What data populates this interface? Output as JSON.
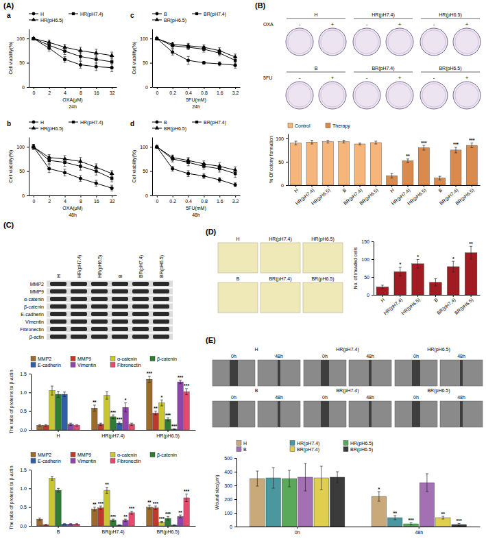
{
  "panels": [
    "(A)",
    "(B)",
    "(C)",
    "(D)",
    "(E)"
  ],
  "colony_images": {
    "rows": [
      {
        "treatment": "OXA",
        "groups": [
          "H",
          "HR(pH7.4)",
          "HR(pH6.5)"
        ]
      },
      {
        "treatment": "5FU",
        "groups": [
          "B",
          "BR(pH7.4)",
          "BR(pH6.5)"
        ]
      }
    ],
    "signs": [
      "-",
      "+"
    ]
  },
  "blot": {
    "lanes": [
      "H",
      "HR(pH7.4)",
      "HR(pH6.5)",
      "B",
      "BR(pH7.4)",
      "BR(pH6.5)"
    ],
    "proteins": [
      "MMP2",
      "MMP9",
      "α-catenin",
      "β-catenin",
      "E-cadherin",
      "Vimentin",
      "Fibronectin",
      "β-actin"
    ]
  },
  "invasion_images": {
    "labels": [
      "H",
      "HR(pH7.4)",
      "HR(pH6.5)",
      "B",
      "BR(pH7.4)",
      "BR(pH6.5)"
    ]
  },
  "wound_images": {
    "labels": [
      "H",
      "HR(pH7.4)",
      "HR(pH6.5)",
      "B",
      "BR(pH7.4)",
      "BR(pH6.5)"
    ],
    "times": [
      "0h",
      "48h"
    ]
  },
  "chart_data": [
    {
      "type": "line",
      "title": "a",
      "subtitle": "24h",
      "x_label": "OXA(μM)",
      "y_label": "Cell viability(%)",
      "categories": [
        "0",
        "2",
        "4",
        "8",
        "16",
        "32"
      ],
      "ylim": [
        0,
        120
      ],
      "yticks": [
        0,
        50,
        100
      ],
      "legend": "top",
      "series": [
        {
          "name": "H",
          "color": "#000000",
          "marker": "circle",
          "values": [
            100,
            80,
            57,
            46,
            42,
            40
          ],
          "errors": [
            2,
            6,
            6,
            7,
            8,
            8
          ]
        },
        {
          "name": "HR(pH7.4)",
          "color": "#000000",
          "marker": "square",
          "values": [
            100,
            86,
            74,
            63,
            57,
            52
          ],
          "errors": [
            2,
            5,
            7,
            8,
            9,
            9
          ]
        },
        {
          "name": "HR(pH6.5)",
          "color": "#000000",
          "marker": "triangle",
          "values": [
            100,
            92,
            82,
            75,
            70,
            65
          ],
          "errors": [
            2,
            5,
            6,
            7,
            8,
            7
          ]
        }
      ]
    },
    {
      "type": "line",
      "title": "b",
      "subtitle": "48h",
      "x_label": "OXA(μM)",
      "y_label": "Cell viability(%)",
      "categories": [
        "0",
        "2",
        "4",
        "8",
        "16",
        "32"
      ],
      "ylim": [
        0,
        120
      ],
      "yticks": [
        0,
        50,
        100
      ],
      "legend": "top",
      "series": [
        {
          "name": "H",
          "color": "#000000",
          "marker": "circle",
          "values": [
            100,
            55,
            47,
            35,
            25,
            15
          ],
          "errors": [
            5,
            8,
            7,
            6,
            6,
            6
          ]
        },
        {
          "name": "HR(pH7.4)",
          "color": "#000000",
          "marker": "square",
          "values": [
            100,
            72,
            68,
            60,
            50,
            35
          ],
          "errors": [
            5,
            7,
            8,
            8,
            8,
            7
          ]
        },
        {
          "name": "HR(pH6.5)",
          "color": "#000000",
          "marker": "triangle",
          "values": [
            100,
            78,
            75,
            70,
            58,
            45
          ],
          "errors": [
            5,
            6,
            7,
            8,
            7,
            6
          ]
        }
      ]
    },
    {
      "type": "line",
      "title": "c",
      "subtitle": "24h",
      "x_label": "5FU(mM)",
      "y_label": "Cell viability(%)",
      "categories": [
        "0",
        "0.2",
        "0.4",
        "0.8",
        "1.6",
        "3.2"
      ],
      "ylim": [
        0,
        120
      ],
      "yticks": [
        0,
        50,
        100
      ],
      "legend": "top",
      "series": [
        {
          "name": "B",
          "color": "#000000",
          "marker": "circle",
          "values": [
            100,
            72,
            55,
            50,
            48,
            45
          ],
          "errors": [
            2,
            6,
            8,
            3,
            4,
            6
          ]
        },
        {
          "name": "BR(pH7.4)",
          "color": "#000000",
          "marker": "square",
          "values": [
            100,
            85,
            82,
            78,
            70,
            55
          ],
          "errors": [
            2,
            5,
            5,
            6,
            6,
            7
          ]
        },
        {
          "name": "BR(pH6.5)",
          "color": "#000000",
          "marker": "triangle",
          "values": [
            100,
            88,
            85,
            82,
            75,
            62
          ],
          "errors": [
            2,
            4,
            5,
            5,
            6,
            6
          ]
        }
      ]
    },
    {
      "type": "line",
      "title": "d",
      "subtitle": "48h",
      "x_label": "5FU(mM)",
      "y_label": "Cell viability(%)",
      "categories": [
        "0",
        "0.2",
        "0.4",
        "0.8",
        "1.6",
        "3.2"
      ],
      "ylim": [
        0,
        120
      ],
      "yticks": [
        0,
        50,
        100
      ],
      "legend": "top",
      "series": [
        {
          "name": "B",
          "color": "#000000",
          "marker": "circle",
          "values": [
            100,
            55,
            45,
            40,
            32,
            22
          ],
          "errors": [
            2,
            5,
            6,
            5,
            5,
            4
          ]
        },
        {
          "name": "BR(pH7.4)",
          "color": "#000000",
          "marker": "square",
          "values": [
            100,
            75,
            68,
            60,
            55,
            45
          ],
          "errors": [
            2,
            6,
            7,
            6,
            7,
            8
          ]
        },
        {
          "name": "BR(pH6.5)",
          "color": "#000000",
          "marker": "triangle",
          "values": [
            100,
            78,
            72,
            65,
            60,
            52
          ],
          "errors": [
            2,
            5,
            6,
            6,
            7,
            7
          ]
        }
      ]
    },
    {
      "type": "bar",
      "y_label": "% Of colony formation",
      "categories": [
        "H",
        "HR(pH7.4)",
        "HR(pH6.5)",
        "B",
        "BR(pH7.4)",
        "BR(pH6.5)",
        "H",
        "HR(pH7.4)",
        "HR(pH6.5)",
        "B",
        "BR(pH7.4)",
        "BR(pH6.5)"
      ],
      "ylim": [
        0,
        110
      ],
      "yticks": [
        0,
        50,
        100
      ],
      "legend": "top",
      "series": [
        {
          "name": "Control",
          "color": "#f6b57a",
          "values": [
            90,
            92,
            93,
            93,
            88,
            91,
            null,
            null,
            null,
            null,
            null,
            null
          ],
          "errors": [
            4,
            4,
            3,
            3,
            2,
            3,
            null,
            null,
            null,
            null,
            null,
            null
          ]
        },
        {
          "name": "Therapy",
          "color": "#d98a4c",
          "values": [
            null,
            null,
            null,
            null,
            null,
            null,
            20,
            52,
            80,
            15,
            75,
            85
          ],
          "errors": [
            null,
            null,
            null,
            null,
            null,
            null,
            5,
            4,
            5,
            4,
            6,
            5
          ],
          "annotations": [
            null,
            null,
            null,
            null,
            null,
            null,
            null,
            "**",
            "***",
            null,
            "***",
            "***"
          ]
        }
      ]
    },
    {
      "type": "bar",
      "y_label": "The ratio of proteins to β-actin",
      "categories": [
        "H",
        "HR(pH7.4)",
        "HR(pH6.5)"
      ],
      "ylim": [
        0,
        1.5
      ],
      "yticks": [
        {
          "value": 0,
          "label": "0.0"
        },
        0.5,
        {
          "value": 1,
          "label": "1.0"
        },
        1.5
      ],
      "legend": "top",
      "series": [
        {
          "name": "MMP2",
          "color": "#9c6a2e",
          "values": [
            0.12,
            0.58,
            1.35
          ],
          "errors": [
            0.02,
            0.08,
            0.08
          ],
          "annotations": [
            null,
            "**",
            "***"
          ]
        },
        {
          "name": "MMP9",
          "color": "#c0392b",
          "values": [
            0.12,
            0.15,
            0.45
          ],
          "errors": [
            0.02,
            0.03,
            0.05
          ],
          "annotations": [
            null,
            null,
            "**"
          ]
        },
        {
          "name": "α-catenin",
          "color": "#c9c634",
          "values": [
            1.05,
            0.92,
            0.72
          ],
          "errors": [
            0.12,
            0.1,
            0.08
          ],
          "annotations": [
            null,
            null,
            "*"
          ]
        },
        {
          "name": "β-catenin",
          "color": "#2f7d32",
          "values": [
            0.95,
            0.35,
            0.28
          ],
          "errors": [
            0.08,
            0.05,
            0.04
          ],
          "annotations": [
            null,
            "***",
            "***"
          ]
        },
        {
          "name": "E-cadherin",
          "color": "#2e5fa8",
          "values": [
            0.95,
            0.18,
            0.02
          ],
          "errors": [
            0.06,
            0.03,
            0.01
          ],
          "annotations": [
            null,
            "***",
            "***"
          ]
        },
        {
          "name": "Vimentin",
          "color": "#8e44ad",
          "values": [
            0.15,
            0.6,
            1.28
          ],
          "errors": [
            0.03,
            0.12,
            0.05
          ],
          "annotations": [
            null,
            "*",
            "***"
          ]
        },
        {
          "name": "Fibronectin",
          "color": "#e84a6f",
          "values": [
            0.12,
            0.15,
            1.02
          ],
          "errors": [
            0.02,
            0.03,
            0.08
          ],
          "annotations": [
            null,
            null,
            "***"
          ]
        }
      ]
    },
    {
      "type": "bar",
      "y_label": "The ratio of proteins to β-actin",
      "categories": [
        "B",
        "BR(pH7.4)",
        "BR(pH6.5)"
      ],
      "ylim": [
        0,
        1.5
      ],
      "yticks": [
        {
          "value": 0,
          "label": "0.0"
        },
        0.5,
        {
          "value": 1,
          "label": "1.0"
        },
        1.5
      ],
      "legend": "top",
      "series": [
        {
          "name": "MMP2",
          "color": "#9c6a2e",
          "values": [
            0.18,
            0.45,
            0.5
          ],
          "errors": [
            0.03,
            0.05,
            0.05
          ],
          "annotations": [
            null,
            "**",
            "**"
          ]
        },
        {
          "name": "MMP9",
          "color": "#c0392b",
          "values": [
            0.03,
            0.48,
            0.48
          ],
          "errors": [
            0.01,
            0.05,
            0.05
          ],
          "annotations": [
            null,
            "***",
            "***"
          ]
        },
        {
          "name": "α-catenin",
          "color": "#c9c634",
          "values": [
            1.27,
            0.95,
            0.1
          ],
          "errors": [
            0.05,
            0.08,
            0.02
          ],
          "annotations": [
            null,
            "**",
            "***"
          ]
        },
        {
          "name": "β-catenin",
          "color": "#2f7d32",
          "values": [
            0.95,
            0.15,
            0.2
          ],
          "errors": [
            0.05,
            0.03,
            0.05
          ],
          "annotations": [
            null,
            "***",
            "***"
          ]
        },
        {
          "name": "E-cadherin",
          "color": "#2e5fa8",
          "values": [
            0.05,
            0.02,
            0.02
          ],
          "errors": [
            0.01,
            0.01,
            0.01
          ]
        },
        {
          "name": "Vimentin",
          "color": "#8e44ad",
          "values": [
            0.05,
            0.15,
            0.25
          ],
          "errors": [
            0.01,
            0.03,
            0.04
          ],
          "annotations": [
            null,
            "**",
            "**"
          ]
        },
        {
          "name": "Fibronectin",
          "color": "#e84a6f",
          "values": [
            0.05,
            0.35,
            0.75
          ],
          "errors": [
            0.01,
            0.04,
            0.1
          ],
          "annotations": [
            null,
            "***",
            "***"
          ]
        }
      ]
    },
    {
      "type": "bar",
      "y_label": "No. of invaded cells",
      "categories": [
        "H",
        "HR(pH7.4)",
        "HR(pH6.5)",
        "B",
        "BR(pH7.4)",
        "BR(pH6.5)"
      ],
      "ylim": [
        0,
        150
      ],
      "yticks": [
        0,
        50,
        100,
        150
      ],
      "color": "#a01c22",
      "values": [
        22,
        65,
        87,
        35,
        79,
        118
      ],
      "errors": [
        5,
        12,
        12,
        10,
        15,
        18
      ],
      "annotations": [
        null,
        "*",
        "*",
        null,
        "*",
        "**"
      ]
    },
    {
      "type": "bar",
      "y_label": "Wound size(μm)",
      "categories": [
        "0h",
        "48h"
      ],
      "ylim": [
        0,
        500
      ],
      "yticks": [
        0,
        100,
        200,
        300,
        400,
        500
      ],
      "legend": "top",
      "series": [
        {
          "name": "H",
          "color": "#c9a97a",
          "values": [
            350,
            220
          ],
          "errors": [
            55,
            35
          ],
          "annotations": [
            null,
            "*"
          ]
        },
        {
          "name": "HR(pH7.4)",
          "color": "#4a97a0",
          "values": [
            355,
            65
          ],
          "errors": [
            75,
            15
          ],
          "annotations": [
            null,
            "**"
          ]
        },
        {
          "name": "HR(pH6.5)",
          "color": "#5aa85a",
          "values": [
            350,
            20
          ],
          "errors": [
            60,
            8
          ],
          "annotations": [
            null,
            "***"
          ]
        },
        {
          "name": "B",
          "color": "#a371b3",
          "values": [
            360,
            320
          ],
          "errors": [
            100,
            65
          ]
        },
        {
          "name": "BR(pH7.4)",
          "color": "#e0cf4e",
          "values": [
            355,
            65
          ],
          "errors": [
            85,
            10
          ],
          "annotations": [
            null,
            "**"
          ]
        },
        {
          "name": "BR(pH6.5)",
          "color": "#3b3b3b",
          "values": [
            360,
            15
          ],
          "errors": [
            40,
            8
          ],
          "annotations": [
            null,
            "***"
          ]
        }
      ]
    }
  ]
}
